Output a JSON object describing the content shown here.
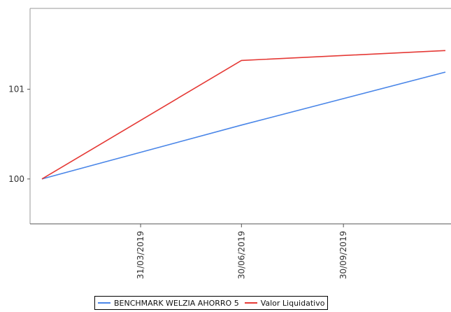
{
  "chart_data": {
    "type": "line",
    "x": [
      "01/01/2019",
      "31/03/2019",
      "30/06/2019",
      "30/09/2019",
      "31/12/2019"
    ],
    "x_tick_labels": [
      "31/03/2019",
      "30/06/2019",
      "30/09/2019"
    ],
    "y_tick_labels": [
      "100",
      "101"
    ],
    "y_ticks": [
      100,
      101
    ],
    "ylim": [
      99.5,
      101.9
    ],
    "series": [
      {
        "name": "BENCHMARK WELZIA AHORRO 5",
        "color": "#4a86e8",
        "x": [
          "01/01/2019",
          "30/06/2019",
          "31/12/2019"
        ],
        "values": [
          100.0,
          100.6,
          101.19
        ]
      },
      {
        "name": "Valor Liquidativo",
        "color": "#e53935",
        "x": [
          "01/01/2019",
          "30/06/2019",
          "31/12/2019"
        ],
        "values": [
          100.0,
          101.32,
          101.43
        ]
      }
    ],
    "grid": false,
    "legend_position": "bottom",
    "title": "",
    "xlabel": "",
    "ylabel": ""
  }
}
